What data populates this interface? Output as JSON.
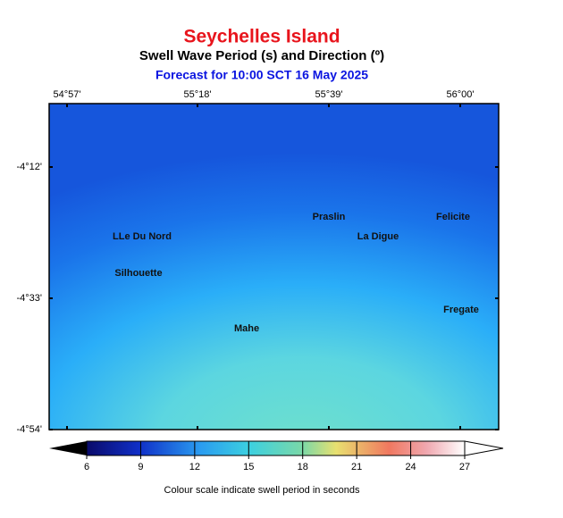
{
  "title": "Seychelles Island",
  "subtitle": "Swell Wave Period (s) and Direction (º)",
  "forecast": "Forecast for  10:00 SCT 16 May 2025",
  "map": {
    "lon_ticks": [
      "54°57'",
      "55°18'",
      "55°39'",
      "56°00'"
    ],
    "lat_ticks": [
      "-4°12'",
      "-4°33'",
      "-4°54'"
    ],
    "places": [
      "Praslin",
      "Felicite",
      "LLe Du Nord",
      "La Digue",
      "Silhouette",
      "Fregate",
      "Mahe"
    ]
  },
  "colorbar": {
    "clim": [
      6,
      27
    ],
    "ticks": [
      6,
      9,
      12,
      15,
      18,
      21,
      24,
      27
    ],
    "caption": "Colour scale indicate swell period in seconds"
  }
}
